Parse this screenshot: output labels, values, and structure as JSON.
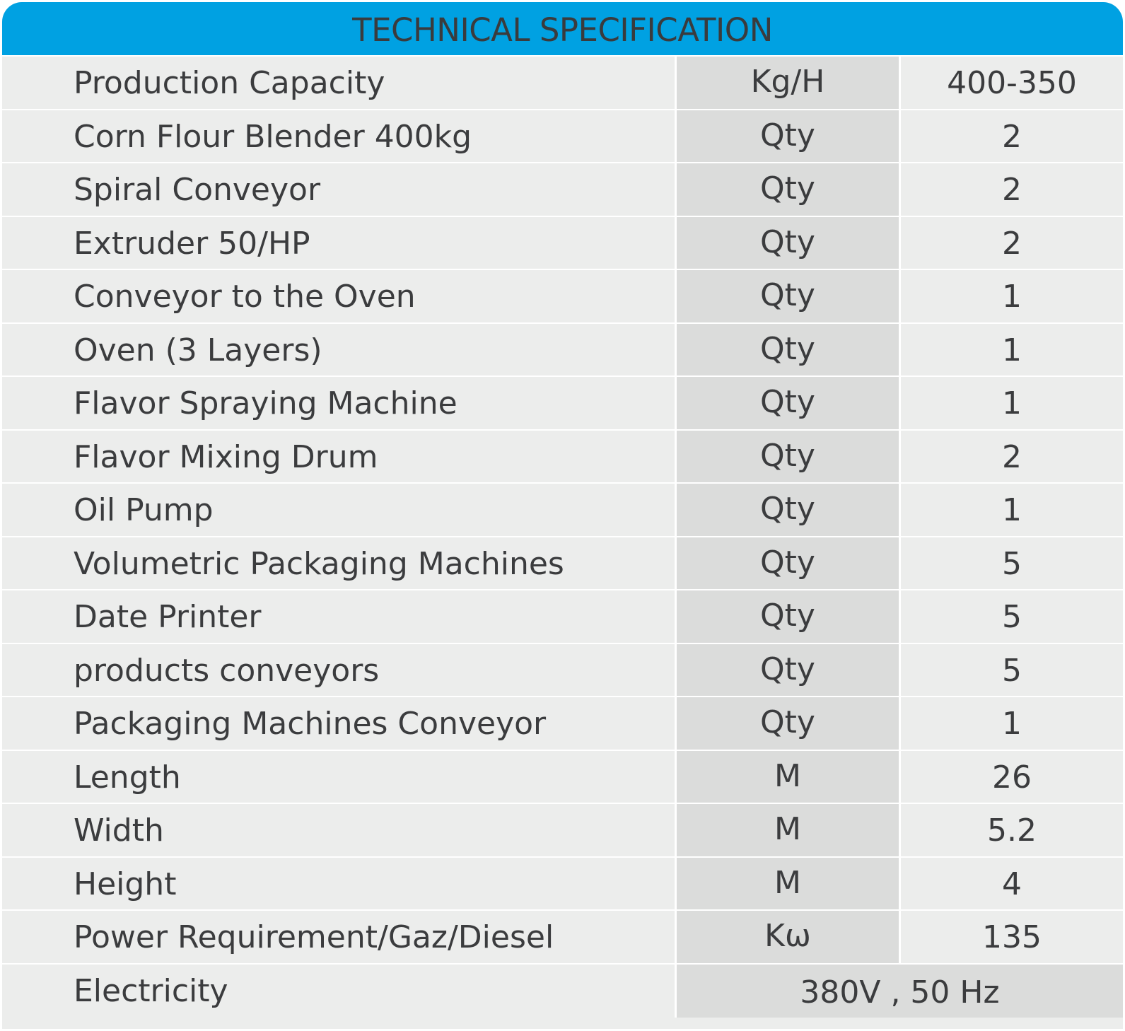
{
  "header": {
    "title": "TECHNICAL SPECIFICATION"
  },
  "rows": [
    {
      "name": "Production Capacity",
      "unit": "Kg/H",
      "value": "400-350"
    },
    {
      "name": "Corn Flour Blender 400kg",
      "unit": "Qty",
      "value": "2"
    },
    {
      "name": "Spiral Conveyor",
      "unit": "Qty",
      "value": "2"
    },
    {
      "name": "Extruder 50/HP",
      "unit": "Qty",
      "value": "2"
    },
    {
      "name": "Conveyor to the Oven",
      "unit": "Qty",
      "value": "1"
    },
    {
      "name": "Oven (3 Layers)",
      "unit": "Qty",
      "value": "1"
    },
    {
      "name": "Flavor Spraying Machine",
      "unit": "Qty",
      "value": "1"
    },
    {
      "name": "Flavor Mixing Drum",
      "unit": "Qty",
      "value": "2"
    },
    {
      "name": "Oil Pump",
      "unit": "Qty",
      "value": "1"
    },
    {
      "name": "Volumetric Packaging Machines",
      "unit": "Qty",
      "value": "5"
    },
    {
      "name": "Date Printer",
      "unit": "Qty",
      "value": "5"
    },
    {
      "name": "products conveyors",
      "unit": "Qty",
      "value": "5"
    },
    {
      "name": "Packaging Machines Conveyor",
      "unit": "Qty",
      "value": "1"
    },
    {
      "name": "Length",
      "unit": "M",
      "value": "26"
    },
    {
      "name": "Width",
      "unit": "M",
      "value": "5.2"
    },
    {
      "name": "Height",
      "unit": "M",
      "value": "4"
    },
    {
      "name": "Power Requirement/Gaz/Diesel",
      "unit": "Kω",
      "value": "135"
    }
  ],
  "electricity": {
    "name": "Electricity",
    "value": "380V , 50 Hz"
  },
  "colors": {
    "header_bg": "#00a1e2",
    "row_bg": "#ecedec",
    "unit_col_bg": "#dbdcdb",
    "text": "#3b3c3e",
    "divider": "#ffffff"
  }
}
